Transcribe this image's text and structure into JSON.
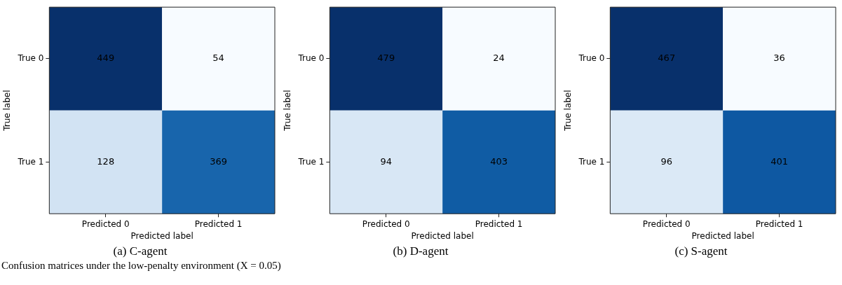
{
  "chart_data": [
    {
      "type": "heatmap",
      "title": "(a) C-agent",
      "xlabel": "Predicted label",
      "ylabel": "True label",
      "categories": [
        "Predicted 0",
        "Predicted 1"
      ],
      "y_categories": [
        "True 0",
        "True 1"
      ],
      "cells": [
        [
          449,
          54
        ],
        [
          128,
          369
        ]
      ],
      "data_labels": true,
      "annotations": [
        "Confusion matrices under the low-penalty environment (X = 0.05)"
      ]
    },
    {
      "type": "heatmap",
      "title": "(b) D-agent",
      "xlabel": "Predicted label",
      "ylabel": "True label",
      "categories": [
        "Predicted 0",
        "Predicted 1"
      ],
      "y_categories": [
        "True 0",
        "True 1"
      ],
      "cells": [
        [
          479,
          24
        ],
        [
          94,
          403
        ]
      ],
      "data_labels": true
    },
    {
      "type": "heatmap",
      "title": "(c) S-agent",
      "xlabel": "Predicted label",
      "ylabel": "True label",
      "categories": [
        "Predicted 0",
        "Predicted 1"
      ],
      "y_categories": [
        "True 0",
        "True 1"
      ],
      "cells": [
        [
          467,
          36
        ],
        [
          96,
          401
        ]
      ],
      "data_labels": true
    }
  ]
}
